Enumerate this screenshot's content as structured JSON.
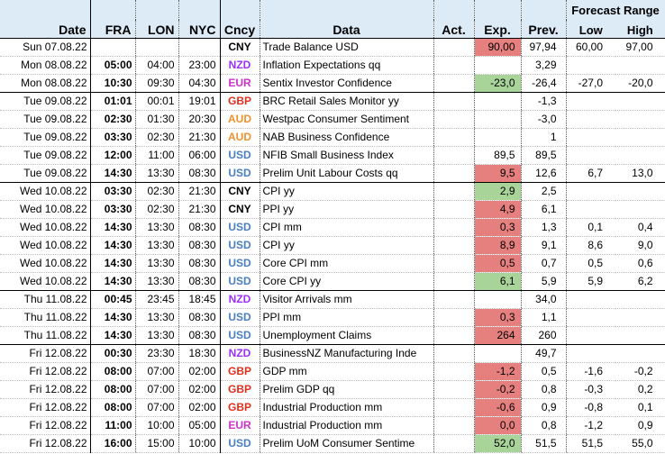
{
  "colors": {
    "header_bg": "#ddebf7",
    "expected_above_prev": "#e6807f",
    "expected_below_prev": "#a8d49a",
    "CNY": "#000000",
    "NZD": "#9b30ff",
    "EUR": "#cc33cc",
    "GBP": "#e03020",
    "AUD": "#f0922c",
    "USD": "#4a7fc1"
  },
  "header": {
    "date": "Date",
    "fra": "FRA",
    "lon": "LON",
    "nyc": "NYC",
    "ccy": "Cncy",
    "data": "Data",
    "act": "Act.",
    "exp": "Exp.",
    "prev": "Prev.",
    "forecast_range": "Forecast Range",
    "low": "Low",
    "high": "High"
  },
  "rows": [
    {
      "date": "Sun 07.08.22",
      "fra": "",
      "lon": "",
      "nyc": "",
      "ccy": "CNY",
      "event": "Trade Balance USD",
      "act": "",
      "exp": "90,00",
      "exp_fill": "red",
      "prev": "97,94",
      "low": "60,00",
      "high": "97,00",
      "group_start": true
    },
    {
      "date": "Mon 08.08.22",
      "fra": "05:00",
      "lon": "04:00",
      "nyc": "23:00",
      "ccy": "NZD",
      "event": "Inflation Expectations qq",
      "act": "",
      "exp": "",
      "exp_fill": "",
      "prev": "3,29",
      "low": "",
      "high": ""
    },
    {
      "date": "Mon 08.08.22",
      "fra": "10:30",
      "lon": "09:30",
      "nyc": "04:30",
      "ccy": "EUR",
      "event": "Sentix Investor Confidence",
      "act": "",
      "exp": "-23,0",
      "exp_fill": "green",
      "prev": "-26,4",
      "low": "-27,0",
      "high": "-20,0"
    },
    {
      "date": "Tue 09.08.22",
      "fra": "01:01",
      "lon": "00:01",
      "nyc": "19:01",
      "ccy": "GBP",
      "event": "BRC Retail Sales Monitor yy",
      "act": "",
      "exp": "",
      "exp_fill": "",
      "prev": "-1,3",
      "low": "",
      "high": "",
      "group_start": true
    },
    {
      "date": "Tue 09.08.22",
      "fra": "02:30",
      "lon": "01:30",
      "nyc": "20:30",
      "ccy": "AUD",
      "event": "Westpac Consumer Sentiment",
      "act": "",
      "exp": "",
      "exp_fill": "",
      "prev": "-3,0",
      "low": "",
      "high": ""
    },
    {
      "date": "Tue 09.08.22",
      "fra": "03:30",
      "lon": "02:30",
      "nyc": "21:30",
      "ccy": "AUD",
      "event": "NAB Business Confidence",
      "act": "",
      "exp": "",
      "exp_fill": "",
      "prev": "1",
      "low": "",
      "high": ""
    },
    {
      "date": "Tue 09.08.22",
      "fra": "12:00",
      "lon": "11:00",
      "nyc": "06:00",
      "ccy": "USD",
      "event": "NFIB Small Business Index",
      "act": "",
      "exp": "89,5",
      "exp_fill": "",
      "prev": "89,5",
      "low": "",
      "high": ""
    },
    {
      "date": "Tue 09.08.22",
      "fra": "14:30",
      "lon": "13:30",
      "nyc": "08:30",
      "ccy": "USD",
      "event": "Prelim Unit Labour Costs qq",
      "act": "",
      "exp": "9,5",
      "exp_fill": "red",
      "prev": "12,6",
      "low": "6,7",
      "high": "13,0"
    },
    {
      "date": "Wed 10.08.22",
      "fra": "03:30",
      "lon": "02:30",
      "nyc": "21:30",
      "ccy": "CNY",
      "event": "CPI yy",
      "act": "",
      "exp": "2,9",
      "exp_fill": "green",
      "prev": "2,5",
      "low": "",
      "high": "",
      "group_start": true
    },
    {
      "date": "Wed 10.08.22",
      "fra": "03:30",
      "lon": "02:30",
      "nyc": "21:30",
      "ccy": "CNY",
      "event": "PPI yy",
      "act": "",
      "exp": "4,9",
      "exp_fill": "red",
      "prev": "6,1",
      "low": "",
      "high": ""
    },
    {
      "date": "Wed 10.08.22",
      "fra": "14:30",
      "lon": "13:30",
      "nyc": "08:30",
      "ccy": "USD",
      "event": "CPI mm",
      "act": "",
      "exp": "0,3",
      "exp_fill": "red",
      "prev": "1,3",
      "low": "0,1",
      "high": "0,4"
    },
    {
      "date": "Wed 10.08.22",
      "fra": "14:30",
      "lon": "13:30",
      "nyc": "08:30",
      "ccy": "USD",
      "event": "CPI yy",
      "act": "",
      "exp": "8,9",
      "exp_fill": "red",
      "prev": "9,1",
      "low": "8,6",
      "high": "9,0"
    },
    {
      "date": "Wed 10.08.22",
      "fra": "14:30",
      "lon": "13:30",
      "nyc": "08:30",
      "ccy": "USD",
      "event": "Core CPI mm",
      "act": "",
      "exp": "0,5",
      "exp_fill": "red",
      "prev": "0,7",
      "low": "0,5",
      "high": "0,6"
    },
    {
      "date": "Wed 10.08.22",
      "fra": "14:30",
      "lon": "13:30",
      "nyc": "08:30",
      "ccy": "USD",
      "event": "Core CPI yy",
      "act": "",
      "exp": "6,1",
      "exp_fill": "green",
      "prev": "5,9",
      "low": "5,9",
      "high": "6,2"
    },
    {
      "date": "Thu 11.08.22",
      "fra": "00:45",
      "lon": "23:45",
      "nyc": "18:45",
      "ccy": "NZD",
      "event": "Visitor Arrivals mm",
      "act": "",
      "exp": "",
      "exp_fill": "",
      "prev": "34,0",
      "low": "",
      "high": "",
      "group_start": true
    },
    {
      "date": "Thu 11.08.22",
      "fra": "14:30",
      "lon": "13:30",
      "nyc": "08:30",
      "ccy": "USD",
      "event": "PPI mm",
      "act": "",
      "exp": "0,3",
      "exp_fill": "red",
      "prev": "1,1",
      "low": "",
      "high": ""
    },
    {
      "date": "Thu 11.08.22",
      "fra": "14:30",
      "lon": "13:30",
      "nyc": "08:30",
      "ccy": "USD",
      "event": "Unemployment Claims",
      "act": "",
      "exp": "264",
      "exp_fill": "red",
      "prev": "260",
      "low": "",
      "high": ""
    },
    {
      "date": "Fri 12.08.22",
      "fra": "00:30",
      "lon": "23:30",
      "nyc": "18:30",
      "ccy": "NZD",
      "event": "BusinessNZ Manufacturing Inde",
      "act": "",
      "exp": "",
      "exp_fill": "",
      "prev": "49,7",
      "low": "",
      "high": "",
      "group_start": true
    },
    {
      "date": "Fri 12.08.22",
      "fra": "08:00",
      "lon": "07:00",
      "nyc": "02:00",
      "ccy": "GBP",
      "event": "GDP mm",
      "act": "",
      "exp": "-1,2",
      "exp_fill": "red",
      "prev": "0,5",
      "low": "-1,6",
      "high": "-0,2"
    },
    {
      "date": "Fri 12.08.22",
      "fra": "08:00",
      "lon": "07:00",
      "nyc": "02:00",
      "ccy": "GBP",
      "event": "Prelim GDP qq",
      "act": "",
      "exp": "-0,2",
      "exp_fill": "red",
      "prev": "0,8",
      "low": "-0,3",
      "high": "0,2"
    },
    {
      "date": "Fri 12.08.22",
      "fra": "08:00",
      "lon": "07:00",
      "nyc": "02:00",
      "ccy": "GBP",
      "event": "Industrial Production mm",
      "act": "",
      "exp": "-0,6",
      "exp_fill": "red",
      "prev": "0,9",
      "low": "-0,8",
      "high": "0,1"
    },
    {
      "date": "Fri 12.08.22",
      "fra": "11:00",
      "lon": "10:00",
      "nyc": "05:00",
      "ccy": "EUR",
      "event": "Industrial Production mm",
      "act": "",
      "exp": "0,0",
      "exp_fill": "red",
      "prev": "0,8",
      "low": "-1,2",
      "high": "0,9"
    },
    {
      "date": "Fri 12.08.22",
      "fra": "16:00",
      "lon": "15:00",
      "nyc": "10:00",
      "ccy": "USD",
      "event": "Prelim UoM Consumer Sentime",
      "act": "",
      "exp": "52,0",
      "exp_fill": "green",
      "prev": "51,5",
      "low": "51,5",
      "high": "55,0"
    }
  ]
}
